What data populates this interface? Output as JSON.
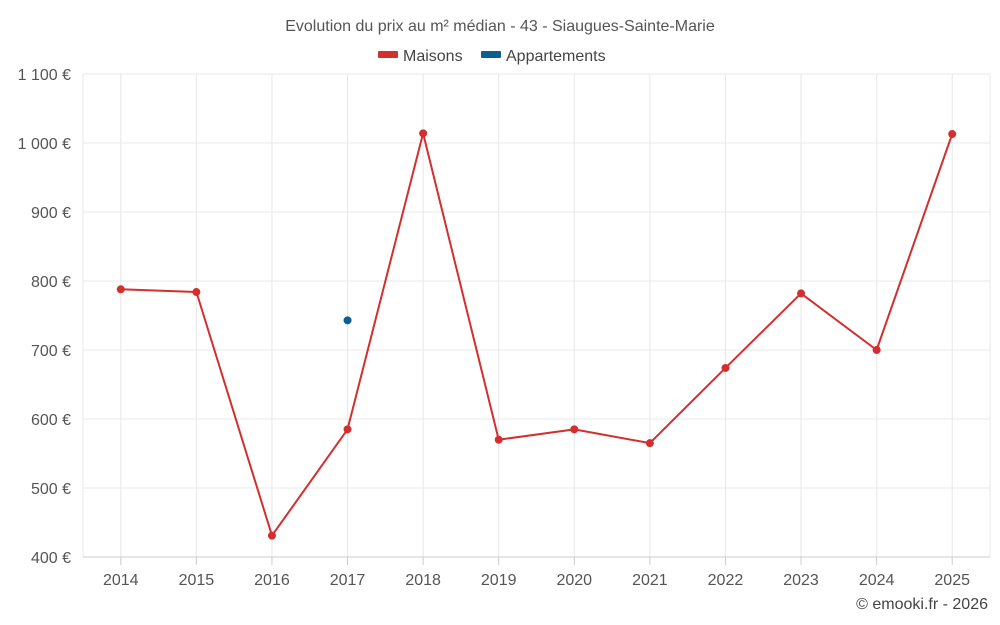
{
  "chart_data": {
    "type": "line",
    "title": "Evolution du prix au m² médian - 43 - Siaugues-Sainte-Marie",
    "categories": [
      "2014",
      "2015",
      "2016",
      "2017",
      "2018",
      "2019",
      "2020",
      "2021",
      "2022",
      "2023",
      "2024",
      "2025"
    ],
    "series": [
      {
        "name": "Maisons",
        "color": "#d32f2f",
        "values": [
          788,
          784,
          431,
          585,
          1014,
          570,
          585,
          565,
          674,
          782,
          700,
          1013
        ]
      },
      {
        "name": "Appartements",
        "color": "#0d5e93",
        "values": [
          null,
          null,
          null,
          743,
          null,
          null,
          null,
          null,
          null,
          null,
          null,
          null
        ]
      }
    ],
    "ylim": [
      400,
      1100
    ],
    "yticks": [
      400,
      500,
      600,
      700,
      800,
      900,
      1000,
      1100
    ],
    "ytick_labels": [
      "400 €",
      "500 €",
      "600 €",
      "700 €",
      "800 €",
      "900 €",
      "1 000 €",
      "1 100 €"
    ],
    "grid": true,
    "legend_position": "top-center",
    "credit": "© emooki.fr - 2026"
  }
}
